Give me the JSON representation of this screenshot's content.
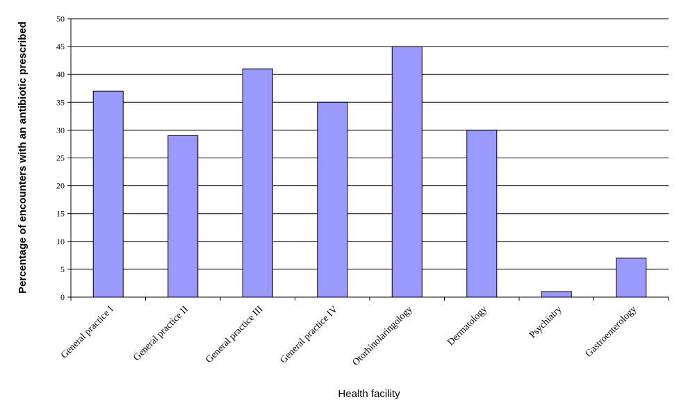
{
  "chart_data": {
    "type": "bar",
    "title": "",
    "xlabel": "Health facility",
    "ylabel": "Percentage of encounters with an antibiotic prescribed",
    "categories": [
      "General practice I",
      "General practice II",
      "General practice III",
      "General practice IV",
      "Otorhinolaringology",
      "Dermatology",
      "Psychiatry",
      "Gastroenterology"
    ],
    "values": [
      37,
      29,
      41,
      35,
      45,
      30,
      1,
      7
    ],
    "ylim": [
      0,
      50
    ],
    "yticks": [
      0,
      5,
      10,
      15,
      20,
      25,
      30,
      35,
      40,
      45,
      50
    ],
    "grid": true,
    "legend": "none",
    "colors": {
      "bar_fill": "#9999ff",
      "bar_stroke": "#000000",
      "grid": "#000000"
    }
  }
}
